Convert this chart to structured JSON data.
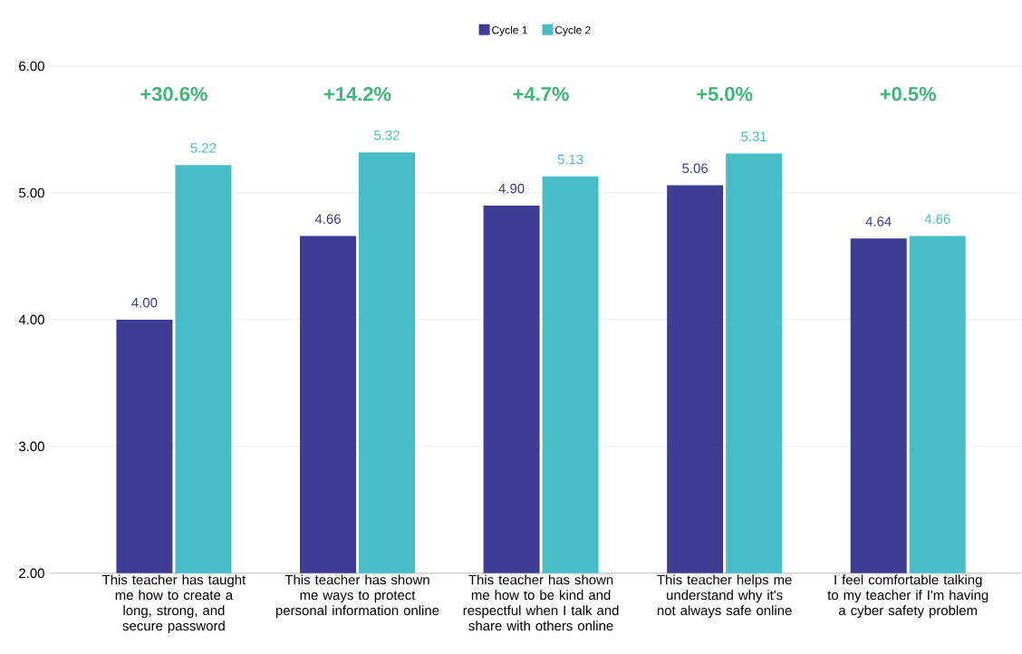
{
  "chart_data": {
    "type": "bar",
    "categories": [
      "This teacher has taught me how to create a long, strong, and secure password",
      "This teacher has shown me ways to protect personal information online",
      "This teacher has shown me how to be kind and respectful when I talk and share with others online",
      "This teacher helps me understand why it's not always safe online",
      "I feel comfortable talking to my teacher if I'm having a cyber safety problem"
    ],
    "series": [
      {
        "name": "Cycle 1",
        "color": "#3d3d94",
        "values": [
          4.0,
          4.66,
          4.9,
          5.06,
          4.64
        ],
        "value_labels": [
          "4.00",
          "4.66",
          "4.90",
          "5.06",
          "4.64"
        ]
      },
      {
        "name": "Cycle 2",
        "color": "#47bdc6",
        "values": [
          5.22,
          5.32,
          5.13,
          5.31,
          4.66
        ],
        "value_labels": [
          "5.22",
          "5.32",
          "5.13",
          "5.31",
          "4.66"
        ]
      }
    ],
    "ylim": [
      2,
      6
    ],
    "yticks": [
      {
        "value": 2,
        "label": "2.00"
      },
      {
        "value": 3,
        "label": "3.00"
      },
      {
        "value": 4,
        "label": "4.00"
      },
      {
        "value": 5,
        "label": "5.00"
      },
      {
        "value": 6,
        "label": "6.00"
      }
    ],
    "grid": "y",
    "legend": "top",
    "annotations": [
      "+30.6%",
      "+14.2%",
      "+4.7%",
      "+5.0%",
      "+0.5%"
    ]
  }
}
